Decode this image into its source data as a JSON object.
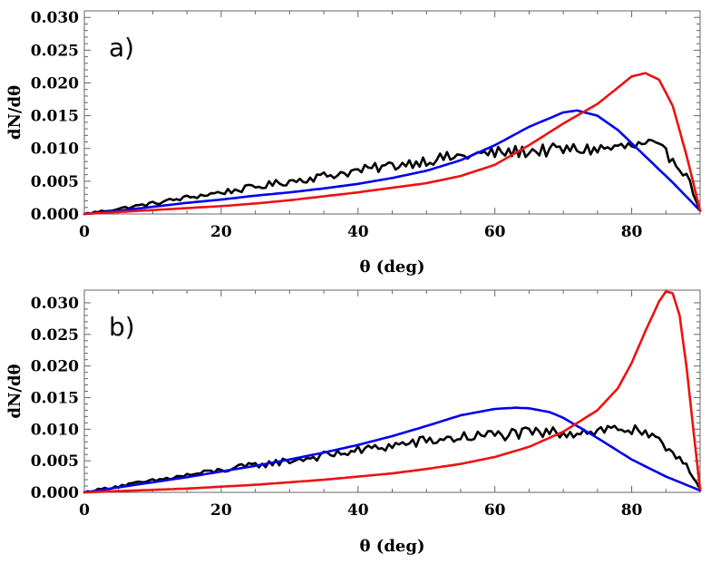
{
  "chart_data": [
    {
      "type": "line",
      "panel_label": "a)",
      "xlabel": "θ (deg)",
      "ylabel": "dN/dθ",
      "xlim": [
        0,
        90
      ],
      "ylim": [
        0,
        0.031
      ],
      "xticks": [
        0,
        20,
        40,
        60,
        80
      ],
      "xtick_labels": [
        "0",
        "20",
        "40",
        "60",
        "80"
      ],
      "yticks": [
        0,
        0.005,
        0.01,
        0.015,
        0.02,
        0.025,
        0.03
      ],
      "ytick_labels": [
        "0.000",
        "0.005",
        "0.010",
        "0.015",
        "0.020",
        "0.025",
        "0.030"
      ],
      "grid": false,
      "series": [
        {
          "name": "black",
          "color": "#000000",
          "noisy": true,
          "x": [
            0,
            5,
            10,
            15,
            20,
            25,
            30,
            35,
            40,
            45,
            50,
            55,
            60,
            65,
            70,
            75,
            80,
            83,
            86,
            88,
            90
          ],
          "y": [
            0,
            0.0008,
            0.0016,
            0.0025,
            0.0033,
            0.0041,
            0.005,
            0.0058,
            0.0066,
            0.0074,
            0.0082,
            0.0088,
            0.0093,
            0.0096,
            0.0098,
            0.0099,
            0.0103,
            0.0105,
            0.0085,
            0.006,
            0.0005
          ]
        },
        {
          "name": "blue",
          "color": "#0000ee",
          "noisy": false,
          "x": [
            0,
            5,
            10,
            15,
            20,
            25,
            30,
            35,
            40,
            45,
            50,
            55,
            60,
            65,
            70,
            72,
            75,
            78,
            80,
            83,
            86,
            90
          ],
          "y": [
            0,
            0.0005,
            0.0011,
            0.0017,
            0.0022,
            0.0028,
            0.0033,
            0.0039,
            0.0046,
            0.0055,
            0.0066,
            0.0082,
            0.0105,
            0.0133,
            0.0155,
            0.0158,
            0.015,
            0.0128,
            0.0108,
            0.0078,
            0.0048,
            0.0005
          ]
        },
        {
          "name": "red",
          "color": "#ee1111",
          "noisy": false,
          "x": [
            0,
            5,
            10,
            15,
            20,
            25,
            30,
            35,
            40,
            45,
            50,
            55,
            60,
            65,
            70,
            75,
            78,
            80,
            82,
            84,
            86,
            88,
            90
          ],
          "y": [
            0,
            0.0003,
            0.0006,
            0.0009,
            0.0012,
            0.0016,
            0.0021,
            0.0027,
            0.0033,
            0.004,
            0.0047,
            0.0058,
            0.0075,
            0.0105,
            0.0138,
            0.0168,
            0.0193,
            0.021,
            0.0215,
            0.0205,
            0.0165,
            0.009,
            0.0005
          ]
        }
      ]
    },
    {
      "type": "line",
      "panel_label": "b)",
      "xlabel": "θ (deg)",
      "ylabel": "dN/dθ",
      "xlim": [
        0,
        90
      ],
      "ylim": [
        0,
        0.032
      ],
      "xticks": [
        0,
        20,
        40,
        60,
        80
      ],
      "xtick_labels": [
        "0",
        "20",
        "40",
        "60",
        "80"
      ],
      "yticks": [
        0,
        0.005,
        0.01,
        0.015,
        0.02,
        0.025,
        0.03
      ],
      "ytick_labels": [
        "0.000",
        "0.005",
        "0.010",
        "0.015",
        "0.020",
        "0.025",
        "0.030"
      ],
      "grid": false,
      "series": [
        {
          "name": "black",
          "color": "#000000",
          "noisy": true,
          "x": [
            0,
            5,
            10,
            15,
            20,
            25,
            30,
            35,
            40,
            45,
            50,
            55,
            60,
            65,
            70,
            75,
            78,
            80,
            83,
            86,
            88,
            90
          ],
          "y": [
            0,
            0.001,
            0.0018,
            0.0027,
            0.0035,
            0.0043,
            0.005,
            0.0058,
            0.0066,
            0.0074,
            0.0081,
            0.0087,
            0.0091,
            0.0093,
            0.0095,
            0.0098,
            0.0102,
            0.0098,
            0.0085,
            0.0065,
            0.0045,
            0.0005
          ]
        },
        {
          "name": "blue",
          "color": "#0000ee",
          "noisy": false,
          "x": [
            0,
            5,
            10,
            15,
            20,
            25,
            30,
            35,
            40,
            45,
            50,
            55,
            60,
            63,
            65,
            68,
            70,
            75,
            80,
            85,
            90
          ],
          "y": [
            0,
            0.0008,
            0.0016,
            0.0024,
            0.0033,
            0.0042,
            0.0052,
            0.0063,
            0.0075,
            0.0089,
            0.0105,
            0.0122,
            0.0132,
            0.0134,
            0.0133,
            0.0127,
            0.0118,
            0.0086,
            0.0052,
            0.0025,
            0.0003
          ]
        },
        {
          "name": "red",
          "color": "#ee1111",
          "noisy": false,
          "x": [
            0,
            5,
            10,
            15,
            20,
            25,
            30,
            35,
            40,
            45,
            50,
            55,
            60,
            65,
            70,
            75,
            78,
            80,
            82,
            84,
            85,
            86,
            87,
            88,
            89,
            90
          ],
          "y": [
            0,
            0.0002,
            0.0004,
            0.0006,
            0.0009,
            0.0012,
            0.0016,
            0.002,
            0.0025,
            0.003,
            0.0037,
            0.0045,
            0.0056,
            0.0072,
            0.0096,
            0.013,
            0.0165,
            0.0205,
            0.0255,
            0.0302,
            0.0318,
            0.0315,
            0.028,
            0.02,
            0.01,
            0.0005
          ]
        }
      ]
    }
  ]
}
